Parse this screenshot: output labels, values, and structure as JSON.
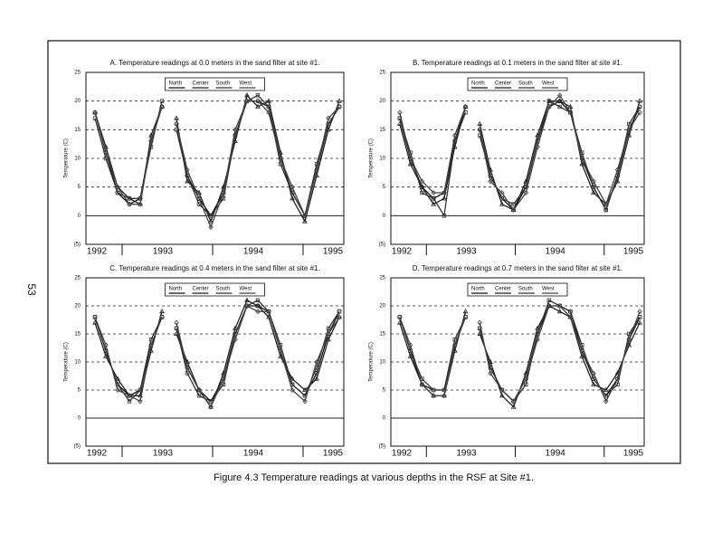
{
  "page_number": "53",
  "caption": "Figure 4.3 Temperature readings at various depths in the RSF at Site #1.",
  "chart_data": [
    {
      "type": "line",
      "title": "A. Temperature readings at 0.0 meters in the sand filter at site #1.",
      "ylabel": "Temperature (C)",
      "x": [
        1992.7,
        1992.82,
        1992.95,
        1993.08,
        1993.2,
        1993.32,
        1993.44,
        1993.52,
        1993.6,
        1993.72,
        1993.85,
        1993.98,
        1994.12,
        1994.25,
        1994.38,
        1994.5,
        1994.62,
        1994.75,
        1994.88,
        1995.02,
        1995.15,
        1995.28,
        1995.4
      ],
      "series": [
        {
          "name": "North",
          "color": "#111111",
          "values": [
            18,
            11,
            4,
            2,
            3,
            13,
            19,
            null,
            16,
            7,
            3,
            0,
            4,
            14,
            20,
            20,
            19,
            10,
            4,
            0,
            8,
            16,
            19
          ]
        },
        {
          "name": "Center",
          "color": "#222222",
          "values": [
            18,
            12,
            5,
            3,
            2,
            14,
            19,
            null,
            17,
            6,
            4,
            -1,
            5,
            13,
            21,
            19,
            20,
            11,
            3,
            -1,
            7,
            15,
            20
          ]
        },
        {
          "name": "South",
          "color": "#333333",
          "values": [
            17,
            10,
            4,
            3,
            3,
            12,
            20,
            null,
            15,
            7,
            2,
            0,
            3,
            14,
            20,
            21,
            19,
            9,
            4,
            0,
            9,
            16,
            19
          ]
        },
        {
          "name": "West",
          "color": "#444444",
          "values": [
            18,
            11,
            5,
            2,
            2,
            13,
            19,
            null,
            16,
            8,
            3,
            -2,
            4,
            15,
            20,
            20,
            18,
            10,
            5,
            0,
            8,
            17,
            19
          ]
        }
      ],
      "xlim": [
        1992.6,
        1995.45
      ],
      "xticks": [
        1992,
        1993,
        1994,
        1995
      ],
      "ylim": [
        -5,
        25
      ],
      "yticks": [
        {
          "value": -5,
          "label": "(5)"
        },
        0,
        5,
        10,
        15,
        20,
        25
      ],
      "grid": true,
      "legend": "top"
    },
    {
      "type": "line",
      "title": "B. Temperature readings at 0.1 meters in the sand filter at site #1.",
      "ylabel": "Temperature (C)",
      "x": [
        1992.7,
        1992.82,
        1992.95,
        1993.08,
        1993.2,
        1993.32,
        1993.44,
        1993.52,
        1993.6,
        1993.72,
        1993.85,
        1993.98,
        1994.12,
        1994.25,
        1994.38,
        1994.5,
        1994.62,
        1994.75,
        1994.88,
        1995.02,
        1995.15,
        1995.28,
        1995.4
      ],
      "series": [
        {
          "name": "North",
          "color": "#111111",
          "values": [
            17,
            10,
            5,
            3,
            4,
            13,
            19,
            null,
            15,
            7,
            3,
            1,
            5,
            13,
            19,
            20,
            18,
            10,
            5,
            1,
            7,
            15,
            19
          ]
        },
        {
          "name": "Center",
          "color": "#222222",
          "values": [
            16,
            9,
            5,
            2,
            3,
            12,
            19,
            null,
            16,
            8,
            2,
            1,
            6,
            14,
            20,
            20,
            19,
            9,
            4,
            2,
            6,
            14,
            20
          ]
        },
        {
          "name": "South",
          "color": "#333333",
          "values": [
            17,
            11,
            4,
            3,
            0,
            13,
            18,
            null,
            14,
            7,
            3,
            2,
            5,
            13,
            20,
            19,
            18,
            11,
            5,
            1,
            7,
            16,
            19
          ]
        },
        {
          "name": "West",
          "color": "#444444",
          "values": [
            18,
            10,
            6,
            4,
            4,
            14,
            19,
            null,
            15,
            6,
            4,
            1,
            4,
            12,
            19,
            21,
            18,
            10,
            6,
            2,
            8,
            15,
            18
          ]
        }
      ],
      "xlim": [
        1992.6,
        1995.45
      ],
      "xticks": [
        1992,
        1993,
        1994,
        1995
      ],
      "ylim": [
        -5,
        25
      ],
      "yticks": [
        {
          "value": -5,
          "label": "(5)"
        },
        0,
        5,
        10,
        15,
        20,
        25
      ],
      "grid": true,
      "legend": "top"
    },
    {
      "type": "line",
      "title": "C. Temperature readings at 0.4 meters in the sand filter at site #1.",
      "ylabel": "Temperature (C)",
      "x": [
        1992.7,
        1992.82,
        1992.95,
        1993.08,
        1993.2,
        1993.32,
        1993.44,
        1993.52,
        1993.6,
        1993.72,
        1993.85,
        1993.98,
        1994.12,
        1994.25,
        1994.38,
        1994.5,
        1994.62,
        1994.75,
        1994.88,
        1995.02,
        1995.15,
        1995.28,
        1995.4
      ],
      "series": [
        {
          "name": "North",
          "color": "#111111",
          "values": [
            18,
            12,
            6,
            4,
            5,
            13,
            18,
            null,
            16,
            9,
            5,
            3,
            7,
            15,
            20,
            20,
            19,
            12,
            6,
            4,
            8,
            15,
            19
          ]
        },
        {
          "name": "Center",
          "color": "#222222",
          "values": [
            17,
            11,
            7,
            4,
            4,
            12,
            19,
            null,
            15,
            10,
            5,
            2,
            8,
            16,
            21,
            20,
            18,
            11,
            7,
            5,
            7,
            14,
            18
          ]
        },
        {
          "name": "South",
          "color": "#333333",
          "values": [
            18,
            12,
            6,
            3,
            5,
            14,
            18,
            null,
            16,
            8,
            4,
            3,
            6,
            15,
            20,
            21,
            19,
            13,
            6,
            4,
            9,
            16,
            19
          ]
        },
        {
          "name": "West",
          "color": "#444444",
          "values": [
            18,
            13,
            5,
            4,
            3,
            13,
            18,
            null,
            17,
            9,
            5,
            2,
            7,
            14,
            20,
            19,
            19,
            12,
            5,
            3,
            10,
            15,
            18
          ]
        }
      ],
      "xlim": [
        1992.6,
        1995.45
      ],
      "xticks": [
        1992,
        1993,
        1994,
        1995
      ],
      "ylim": [
        -5,
        25
      ],
      "yticks": [
        {
          "value": -5,
          "label": "(5)"
        },
        0,
        5,
        10,
        15,
        20,
        25
      ],
      "grid": true,
      "legend": "top"
    },
    {
      "type": "line",
      "title": "D. Temperature readings at 0.7 meters in the sand filter at site #1.",
      "ylabel": "Temperature (C)",
      "x": [
        1992.7,
        1992.82,
        1992.95,
        1993.08,
        1993.2,
        1993.32,
        1993.44,
        1993.52,
        1993.6,
        1993.72,
        1993.85,
        1993.98,
        1994.12,
        1994.25,
        1994.38,
        1994.5,
        1994.62,
        1994.75,
        1994.88,
        1995.02,
        1995.15,
        1995.28,
        1995.4
      ],
      "series": [
        {
          "name": "North",
          "color": "#111111",
          "values": [
            18,
            12,
            6,
            5,
            5,
            13,
            18,
            null,
            16,
            9,
            5,
            3,
            7,
            15,
            20,
            20,
            19,
            12,
            7,
            4,
            7,
            14,
            18
          ]
        },
        {
          "name": "Center",
          "color": "#222222",
          "values": [
            17,
            11,
            6,
            4,
            4,
            12,
            19,
            null,
            15,
            10,
            4,
            2,
            8,
            16,
            20,
            19,
            18,
            11,
            6,
            5,
            8,
            13,
            17
          ]
        },
        {
          "name": "South",
          "color": "#333333",
          "values": [
            18,
            12,
            7,
            5,
            5,
            14,
            18,
            null,
            16,
            9,
            5,
            3,
            6,
            15,
            21,
            20,
            19,
            13,
            7,
            4,
            6,
            15,
            18
          ]
        },
        {
          "name": "West",
          "color": "#444444",
          "values": [
            18,
            13,
            6,
            4,
            4,
            13,
            18,
            null,
            17,
            8,
            5,
            3,
            7,
            14,
            20,
            20,
            18,
            12,
            8,
            3,
            7,
            14,
            19
          ]
        }
      ],
      "xlim": [
        1992.6,
        1995.45
      ],
      "xticks": [
        1992,
        1993,
        1994,
        1995
      ],
      "ylim": [
        -5,
        25
      ],
      "yticks": [
        {
          "value": -5,
          "label": "(5)"
        },
        0,
        5,
        10,
        15,
        20,
        25
      ],
      "grid": true,
      "legend": "top"
    }
  ]
}
